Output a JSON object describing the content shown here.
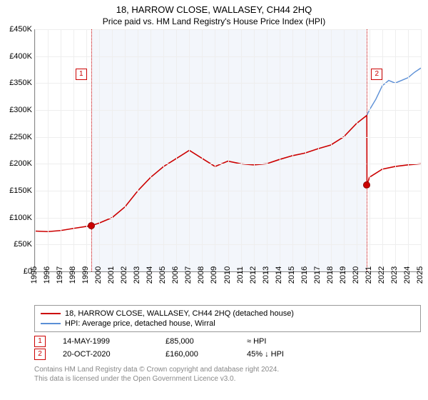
{
  "title": "18, HARROW CLOSE, WALLASEY, CH44 2HQ",
  "subtitle": "Price paid vs. HM Land Registry's House Price Index (HPI)",
  "chart": {
    "ylim": [
      0,
      450000
    ],
    "ytick_step": 50000,
    "ylabels": [
      "£0",
      "£50K",
      "£100K",
      "£150K",
      "£200K",
      "£250K",
      "£300K",
      "£350K",
      "£400K",
      "£450K"
    ],
    "x_years": [
      1995,
      1996,
      1997,
      1998,
      1999,
      2000,
      2001,
      2002,
      2003,
      2004,
      2005,
      2006,
      2007,
      2008,
      2009,
      2010,
      2011,
      2012,
      2013,
      2014,
      2015,
      2016,
      2017,
      2018,
      2019,
      2020,
      2021,
      2022,
      2023,
      2024,
      2025
    ],
    "grid_color": "#eeeeee",
    "axis_color": "#888888",
    "background_color": "#ffffff",
    "shaded": {
      "start_year": 1999.37,
      "end_year": 2020.8,
      "color": "#f3f6fb"
    },
    "series": [
      {
        "name": "address",
        "color": "#cc0000",
        "width": 1.6,
        "points": [
          [
            1995,
            75000
          ],
          [
            1996,
            74000
          ],
          [
            1997,
            76000
          ],
          [
            1998,
            80000
          ],
          [
            1999.37,
            85000
          ],
          [
            2000,
            90000
          ],
          [
            2001,
            100000
          ],
          [
            2002,
            120000
          ],
          [
            2003,
            150000
          ],
          [
            2004,
            175000
          ],
          [
            2005,
            195000
          ],
          [
            2006,
            210000
          ],
          [
            2007,
            225000
          ],
          [
            2008,
            210000
          ],
          [
            2009,
            195000
          ],
          [
            2010,
            205000
          ],
          [
            2011,
            200000
          ],
          [
            2012,
            198000
          ],
          [
            2013,
            200000
          ],
          [
            2014,
            208000
          ],
          [
            2015,
            215000
          ],
          [
            2016,
            220000
          ],
          [
            2017,
            228000
          ],
          [
            2018,
            235000
          ],
          [
            2019,
            250000
          ],
          [
            2020,
            275000
          ],
          [
            2020.8,
            290000
          ],
          [
            2020.81,
            160000
          ],
          [
            2021,
            175000
          ],
          [
            2022,
            190000
          ],
          [
            2023,
            195000
          ],
          [
            2024,
            198000
          ],
          [
            2025,
            200000
          ]
        ]
      },
      {
        "name": "hpi",
        "color": "#5b8fd6",
        "width": 1.4,
        "points": [
          [
            2020.8,
            290000
          ],
          [
            2021,
            300000
          ],
          [
            2021.5,
            320000
          ],
          [
            2022,
            345000
          ],
          [
            2022.5,
            355000
          ],
          [
            2023,
            350000
          ],
          [
            2023.5,
            355000
          ],
          [
            2024,
            360000
          ],
          [
            2024.5,
            370000
          ],
          [
            2025,
            378000
          ]
        ]
      }
    ],
    "vlines": [
      {
        "year": 1999.37,
        "color": "#cc0000"
      },
      {
        "year": 2020.8,
        "color": "#cc0000"
      }
    ],
    "markers": [
      {
        "year": 1999.37,
        "value": 85000
      },
      {
        "year": 2020.8,
        "value": 160000
      }
    ],
    "callouts": [
      {
        "year": 1999.37,
        "label": "1",
        "y": 55
      },
      {
        "year": 2020.8,
        "label": "2",
        "y": 55
      }
    ]
  },
  "legend": [
    {
      "color": "#cc0000",
      "label": "18, HARROW CLOSE, WALLASEY, CH44 2HQ (detached house)"
    },
    {
      "color": "#5b8fd6",
      "label": "HPI: Average price, detached house, Wirral"
    }
  ],
  "sales": [
    {
      "idx": "1",
      "date": "14-MAY-1999",
      "price": "£85,000",
      "hpi": "≈ HPI"
    },
    {
      "idx": "2",
      "date": "20-OCT-2020",
      "price": "£160,000",
      "hpi": "45% ↓ HPI"
    }
  ],
  "footer1": "Contains HM Land Registry data © Crown copyright and database right 2024.",
  "footer2": "This data is licensed under the Open Government Licence v3.0."
}
